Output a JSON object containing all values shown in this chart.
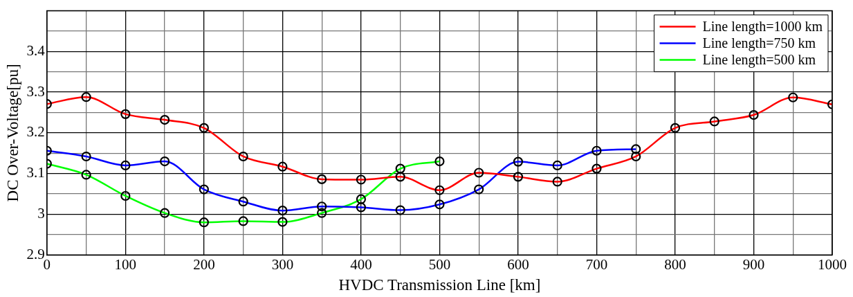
{
  "chart_data": {
    "type": "line",
    "xlabel": "HVDC Transmission Line [km]",
    "ylabel": "DC Over-Voltage[pu]",
    "xlim": [
      0,
      1000
    ],
    "xticks": [
      0,
      {
        "value": 50,
        "label": null
      },
      100,
      {
        "value": 150,
        "label": null
      },
      200,
      {
        "value": 250,
        "label": null
      },
      300,
      {
        "value": 350,
        "label": null
      },
      400,
      {
        "value": 450,
        "label": null
      },
      500,
      {
        "value": 550,
        "label": null
      },
      600,
      {
        "value": 650,
        "label": null
      },
      700,
      {
        "value": 750,
        "label": null
      },
      800,
      {
        "value": 850,
        "label": null
      },
      900,
      {
        "value": 950,
        "label": null
      },
      1000
    ],
    "ylim": [
      2.9,
      3.5
    ],
    "yticks": [
      2.9,
      {
        "value": 2.95,
        "label": null
      },
      3,
      {
        "value": 3.05,
        "label": null
      },
      3.1,
      {
        "value": 3.15,
        "label": null
      },
      3.2,
      {
        "value": 3.25,
        "label": null
      },
      3.3,
      {
        "value": 3.35,
        "label": null
      },
      3.4,
      {
        "value": 3.45,
        "label": null
      },
      {
        "value": 3.5,
        "label": null
      }
    ],
    "grid": true,
    "legend": "top right",
    "marker": "circle",
    "line_style": "solid",
    "series": [
      {
        "name": "Line length=1000 km",
        "color": "#ff0000",
        "x": [
          0,
          50,
          100,
          150,
          200,
          250,
          300,
          350,
          400,
          450,
          500,
          550,
          600,
          650,
          700,
          750,
          800,
          850,
          900,
          950,
          1000
        ],
        "values": [
          3.271,
          3.288,
          3.246,
          3.232,
          3.212,
          3.142,
          3.117,
          3.086,
          3.085,
          3.092,
          3.059,
          3.102,
          3.092,
          3.08,
          3.112,
          3.142,
          3.212,
          3.228,
          3.244,
          3.287,
          3.27
        ]
      },
      {
        "name": "Line length=750 km",
        "color": "#0000ff",
        "x": [
          0,
          50,
          100,
          150,
          200,
          250,
          300,
          350,
          400,
          450,
          500,
          550,
          600,
          650,
          700,
          750
        ],
        "values": [
          3.156,
          3.142,
          3.12,
          3.13,
          3.061,
          3.031,
          3.009,
          3.019,
          3.017,
          3.01,
          3.024,
          3.061,
          3.129,
          3.12,
          3.156,
          3.16
        ]
      },
      {
        "name": "Line length=500 km",
        "color": "#00ff00",
        "x": [
          0,
          50,
          100,
          150,
          200,
          250,
          300,
          350,
          400,
          450,
          500
        ],
        "values": [
          3.124,
          3.097,
          3.045,
          3.003,
          2.98,
          2.983,
          2.981,
          3.003,
          3.037,
          3.112,
          3.13
        ]
      }
    ]
  }
}
